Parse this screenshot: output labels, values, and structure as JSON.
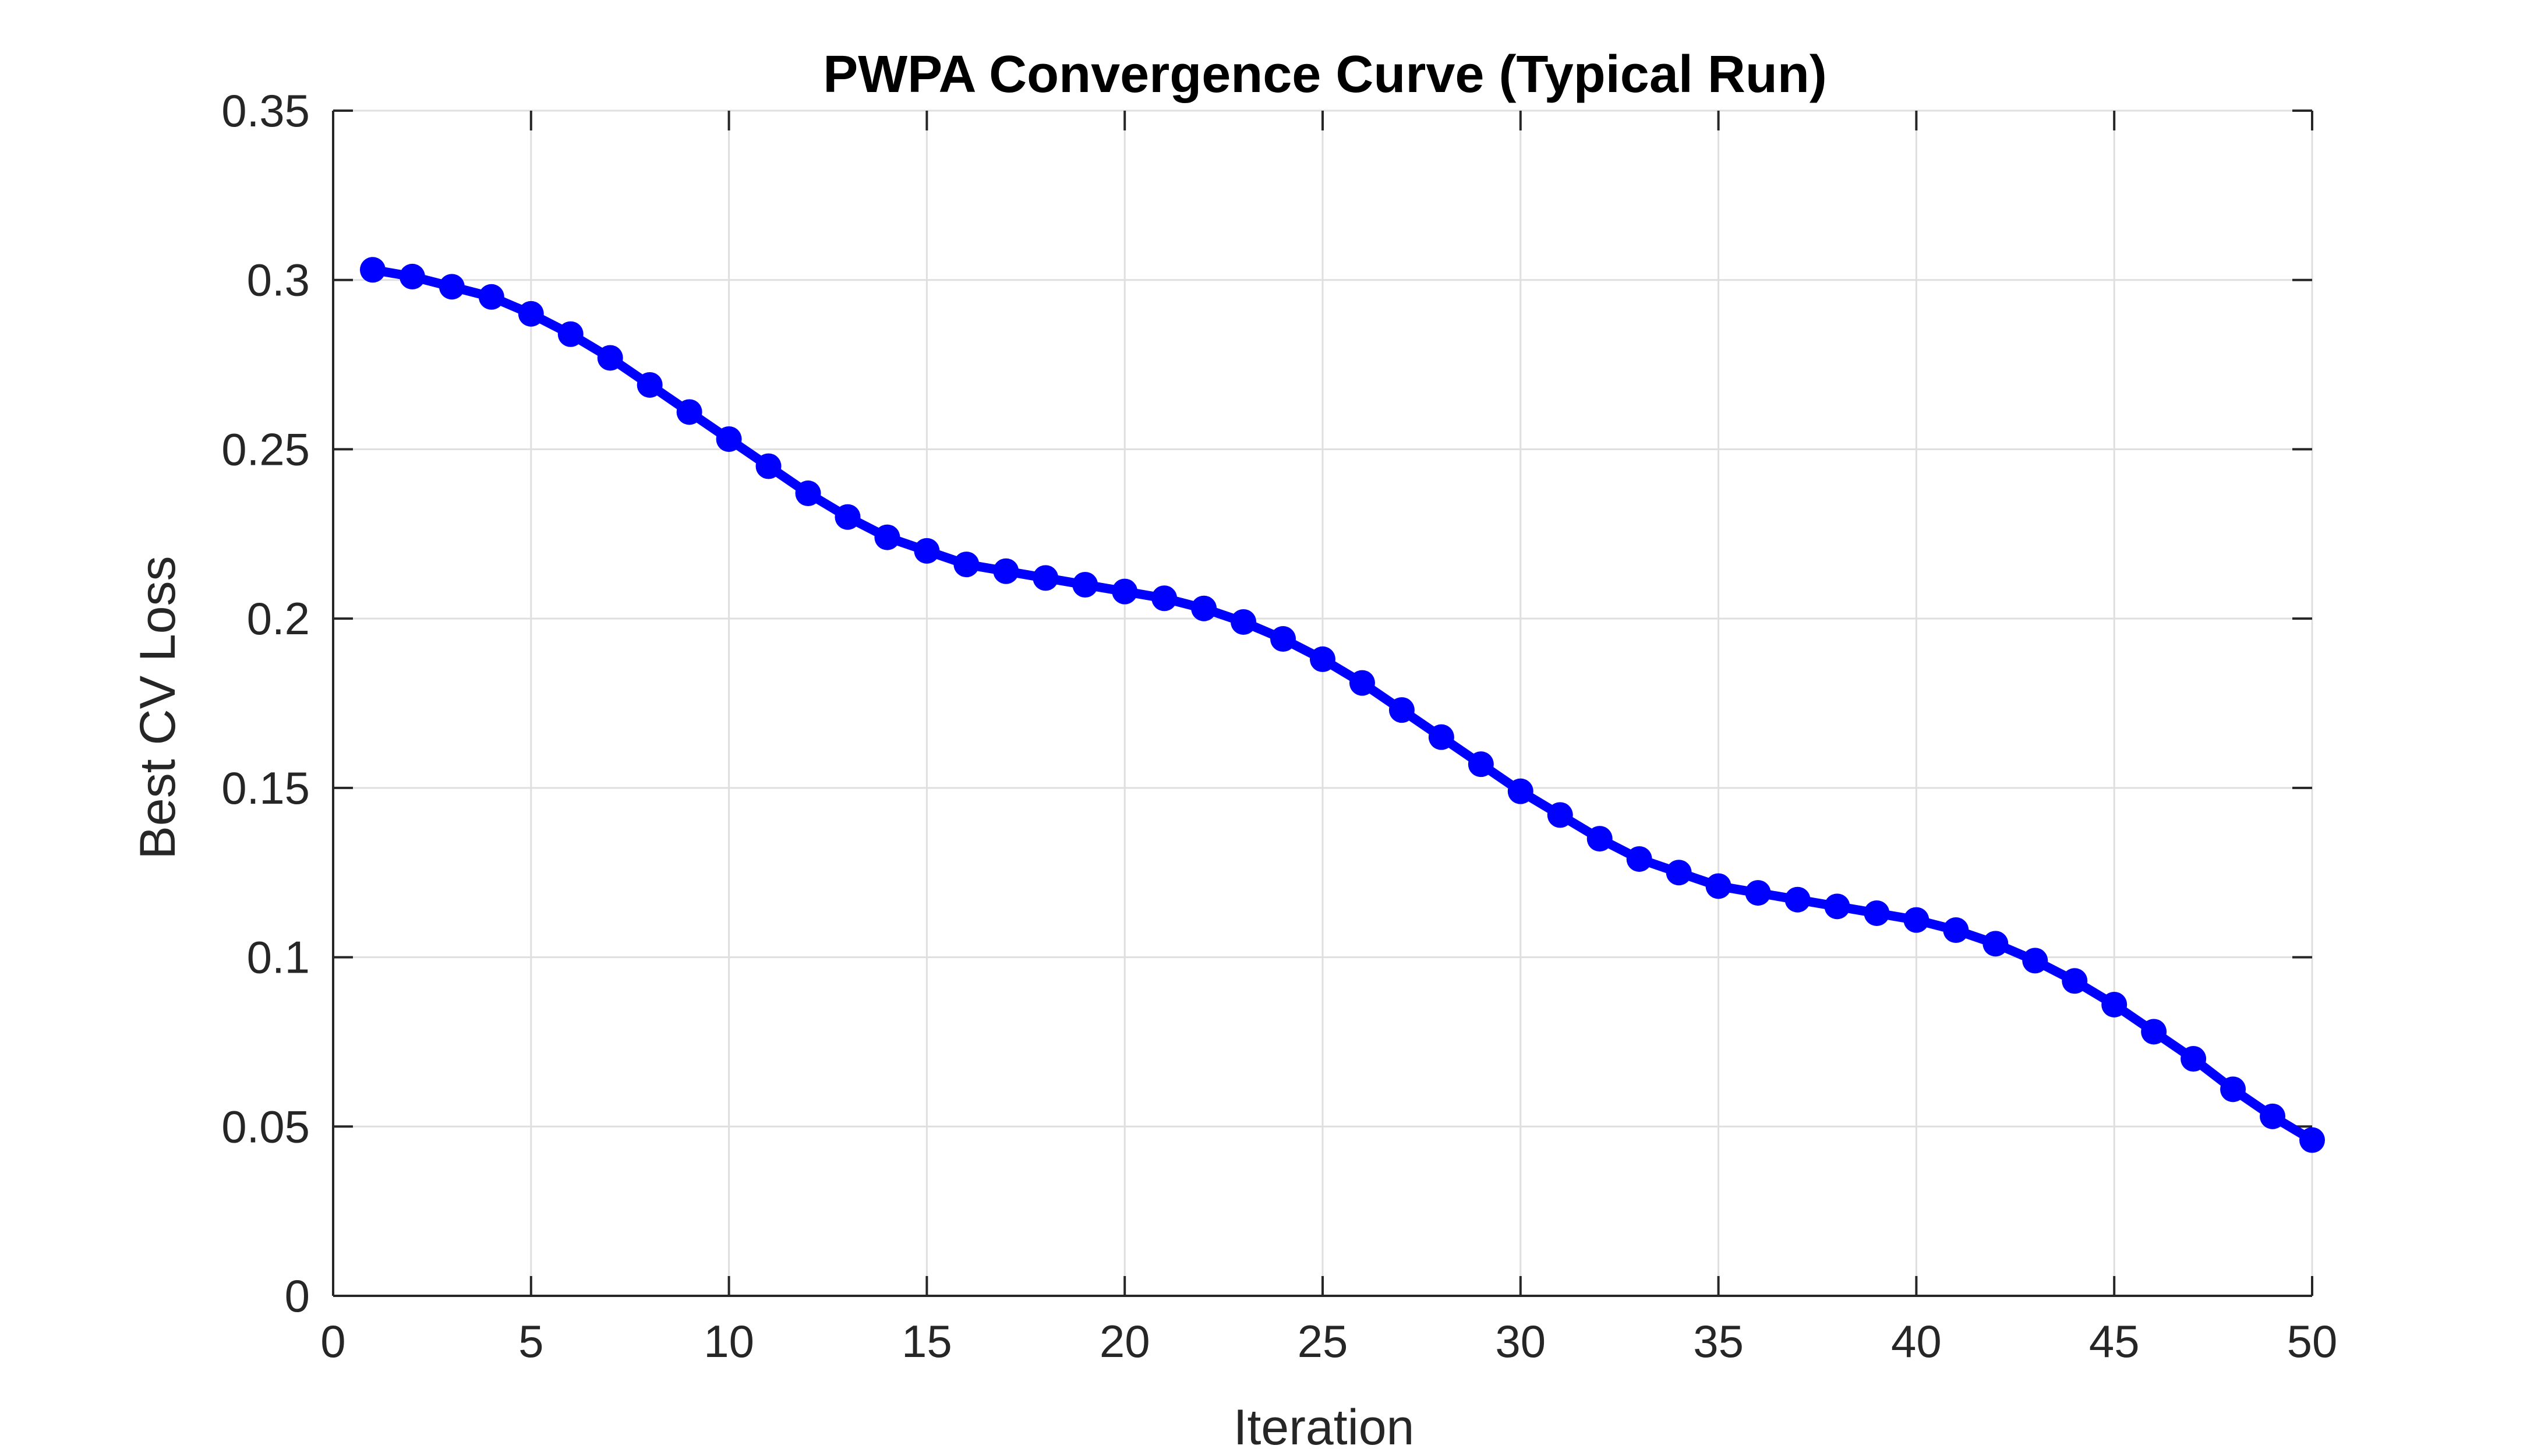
{
  "chart_data": {
    "type": "line",
    "title": "PWPA Convergence Curve (Typical Run)",
    "xlabel": "Iteration",
    "ylabel": "Best CV Loss",
    "xlim": [
      0,
      50
    ],
    "ylim": [
      0,
      0.35
    ],
    "xticks": [
      "0",
      "5",
      "10",
      "15",
      "20",
      "25",
      "30",
      "35",
      "40",
      "45",
      "50"
    ],
    "yticks": [
      "0",
      "0.05",
      "0.1",
      "0.15",
      "0.2",
      "0.25",
      "0.3",
      "0.35"
    ],
    "grid": true,
    "series": [
      {
        "color": "#0000ff",
        "marker": "circle",
        "x": [
          1,
          2,
          3,
          4,
          5,
          6,
          7,
          8,
          9,
          10,
          11,
          12,
          13,
          14,
          15,
          16,
          17,
          18,
          19,
          20,
          21,
          22,
          23,
          24,
          25,
          26,
          27,
          28,
          29,
          30,
          31,
          32,
          33,
          34,
          35,
          36,
          37,
          38,
          39,
          40,
          41,
          42,
          43,
          44,
          45,
          46,
          47,
          48,
          49,
          50
        ],
        "y": [
          0.303,
          0.301,
          0.298,
          0.295,
          0.29,
          0.284,
          0.277,
          0.269,
          0.261,
          0.253,
          0.245,
          0.237,
          0.23,
          0.224,
          0.22,
          0.216,
          0.214,
          0.212,
          0.21,
          0.208,
          0.206,
          0.203,
          0.199,
          0.194,
          0.188,
          0.181,
          0.173,
          0.165,
          0.157,
          0.149,
          0.142,
          0.135,
          0.129,
          0.125,
          0.121,
          0.119,
          0.117,
          0.115,
          0.113,
          0.111,
          0.108,
          0.104,
          0.099,
          0.093,
          0.086,
          0.078,
          0.07,
          0.061,
          0.053,
          0.046
        ]
      }
    ]
  }
}
